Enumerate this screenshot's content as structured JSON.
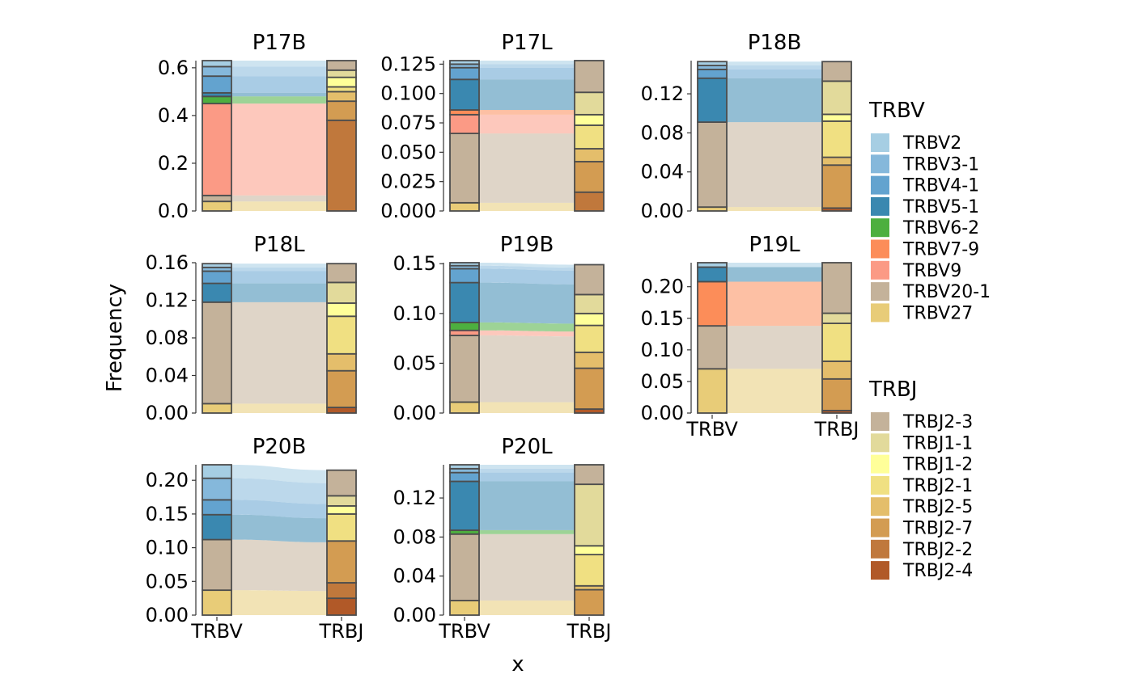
{
  "colors": {
    "TRBV2": "#A6CEE3",
    "TRBV3-1": "#85B8DB",
    "TRBV4-1": "#63A3CF",
    "TRBV5-1": "#3A88B0",
    "TRBV6-2": "#4DAF3F",
    "TRBV7-9": "#FC8D59",
    "TRBV9": "#FB9A85",
    "TRBV20-1": "#C4B29A",
    "TRBV27": "#E8CC78",
    "TRBJ2-3": "#C4B29A",
    "TRBJ1-1": "#E2DA9B",
    "TRBJ1-2": "#FFFF99",
    "TRBJ2-1": "#F0E082",
    "TRBJ2-5": "#E4BE6B",
    "TRBJ2-7": "#D39C52",
    "TRBJ2-2": "#C0783C",
    "TRBJ2-4": "#B15928"
  },
  "chart_data": {
    "type": "alluvial",
    "xlabel": "x",
    "ylabel": "Frequency",
    "x_categories": [
      "TRBV",
      "TRBJ"
    ],
    "facets": [
      {
        "name": "P17B",
        "ylim": [
          0,
          0.63
        ],
        "yticks": [
          0.0,
          0.2,
          0.4,
          0.6
        ],
        "tick_labels": [
          "0.0",
          "0.2",
          "0.4",
          "0.6"
        ],
        "TRBV": [
          {
            "gene": "TRBV27",
            "value": 0.04
          },
          {
            "gene": "TRBV20-1",
            "value": 0.025
          },
          {
            "gene": "TRBV9",
            "value": 0.385
          },
          {
            "gene": "TRBV6-2",
            "value": 0.03
          },
          {
            "gene": "TRBV5-1",
            "value": 0.015
          },
          {
            "gene": "TRBV4-1",
            "value": 0.07
          },
          {
            "gene": "TRBV3-1",
            "value": 0.04
          },
          {
            "gene": "TRBV2",
            "value": 0.025
          }
        ],
        "TRBJ": [
          {
            "gene": "TRBJ2-2",
            "value": 0.38
          },
          {
            "gene": "TRBJ2-7",
            "value": 0.08
          },
          {
            "gene": "TRBJ2-5",
            "value": 0.04
          },
          {
            "gene": "TRBJ2-1",
            "value": 0.02
          },
          {
            "gene": "TRBJ1-2",
            "value": 0.04
          },
          {
            "gene": "TRBJ1-1",
            "value": 0.03
          },
          {
            "gene": "TRBJ2-3",
            "value": 0.04
          }
        ]
      },
      {
        "name": "P17L",
        "ylim": [
          0,
          0.128
        ],
        "yticks": [
          0.0,
          0.025,
          0.05,
          0.075,
          0.1,
          0.125
        ],
        "tick_labels": [
          "0.000",
          "0.025",
          "0.050",
          "0.075",
          "0.100",
          "0.125"
        ],
        "TRBV": [
          {
            "gene": "TRBV27",
            "value": 0.007
          },
          {
            "gene": "TRBV20-1",
            "value": 0.059
          },
          {
            "gene": "TRBV9",
            "value": 0.016
          },
          {
            "gene": "TRBV7-9",
            "value": 0.004
          },
          {
            "gene": "TRBV5-1",
            "value": 0.026
          },
          {
            "gene": "TRBV4-1",
            "value": 0.01
          },
          {
            "gene": "TRBV3-1",
            "value": 0.003
          },
          {
            "gene": "TRBV2",
            "value": 0.003
          }
        ],
        "TRBJ": [
          {
            "gene": "TRBJ2-2",
            "value": 0.016
          },
          {
            "gene": "TRBJ2-7",
            "value": 0.026
          },
          {
            "gene": "TRBJ2-5",
            "value": 0.011
          },
          {
            "gene": "TRBJ2-1",
            "value": 0.02
          },
          {
            "gene": "TRBJ1-2",
            "value": 0.009
          },
          {
            "gene": "TRBJ1-1",
            "value": 0.019
          },
          {
            "gene": "TRBJ2-3",
            "value": 0.027
          }
        ]
      },
      {
        "name": "P18B",
        "ylim": [
          0,
          0.154
        ],
        "yticks": [
          0.0,
          0.04,
          0.08,
          0.12
        ],
        "tick_labels": [
          "0.00",
          "0.04",
          "0.08",
          "0.12"
        ],
        "TRBV": [
          {
            "gene": "TRBV27",
            "value": 0.004
          },
          {
            "gene": "TRBV20-1",
            "value": 0.087
          },
          {
            "gene": "TRBV5-1",
            "value": 0.045
          },
          {
            "gene": "TRBV4-1",
            "value": 0.009
          },
          {
            "gene": "TRBV3-1",
            "value": 0.004
          },
          {
            "gene": "TRBV2",
            "value": 0.004
          }
        ],
        "TRBJ": [
          {
            "gene": "TRBJ2-4",
            "value": 0.003
          },
          {
            "gene": "TRBJ2-7",
            "value": 0.044
          },
          {
            "gene": "TRBJ2-5",
            "value": 0.008
          },
          {
            "gene": "TRBJ2-1",
            "value": 0.037
          },
          {
            "gene": "TRBJ1-2",
            "value": 0.007
          },
          {
            "gene": "TRBJ1-1",
            "value": 0.034
          },
          {
            "gene": "TRBJ2-3",
            "value": 0.02
          }
        ]
      },
      {
        "name": "P18L",
        "ylim": [
          0,
          0.16
        ],
        "yticks": [
          0.0,
          0.04,
          0.08,
          0.12,
          0.16
        ],
        "tick_labels": [
          "0.00",
          "0.04",
          "0.08",
          "0.12",
          "0.16"
        ],
        "TRBV": [
          {
            "gene": "TRBV27",
            "value": 0.01
          },
          {
            "gene": "TRBV20-1",
            "value": 0.108
          },
          {
            "gene": "TRBV5-1",
            "value": 0.02
          },
          {
            "gene": "TRBV4-1",
            "value": 0.013
          },
          {
            "gene": "TRBV3-1",
            "value": 0.004
          },
          {
            "gene": "TRBV2",
            "value": 0.004
          }
        ],
        "TRBJ": [
          {
            "gene": "TRBJ2-4",
            "value": 0.006
          },
          {
            "gene": "TRBJ2-7",
            "value": 0.039
          },
          {
            "gene": "TRBJ2-5",
            "value": 0.018
          },
          {
            "gene": "TRBJ2-1",
            "value": 0.04
          },
          {
            "gene": "TRBJ1-2",
            "value": 0.014
          },
          {
            "gene": "TRBJ1-1",
            "value": 0.022
          },
          {
            "gene": "TRBJ2-3",
            "value": 0.02
          }
        ]
      },
      {
        "name": "P19B",
        "ylim": [
          0,
          0.151
        ],
        "yticks": [
          0.0,
          0.05,
          0.1,
          0.15
        ],
        "tick_labels": [
          "0.00",
          "0.05",
          "0.10",
          "0.15"
        ],
        "TRBV": [
          {
            "gene": "TRBV27",
            "value": 0.011
          },
          {
            "gene": "TRBV20-1",
            "value": 0.067
          },
          {
            "gene": "TRBV9",
            "value": 0.005
          },
          {
            "gene": "TRBV6-2",
            "value": 0.008
          },
          {
            "gene": "TRBV5-1",
            "value": 0.04
          },
          {
            "gene": "TRBV4-1",
            "value": 0.014
          },
          {
            "gene": "TRBV3-1",
            "value": 0.003
          },
          {
            "gene": "TRBV2",
            "value": 0.003
          }
        ],
        "TRBJ": [
          {
            "gene": "TRBJ2-4",
            "value": 0.004
          },
          {
            "gene": "TRBJ2-7",
            "value": 0.041
          },
          {
            "gene": "TRBJ2-5",
            "value": 0.016
          },
          {
            "gene": "TRBJ2-1",
            "value": 0.027
          },
          {
            "gene": "TRBJ1-2",
            "value": 0.012
          },
          {
            "gene": "TRBJ1-1",
            "value": 0.019
          },
          {
            "gene": "TRBJ2-3",
            "value": 0.03
          }
        ]
      },
      {
        "name": "P19L",
        "ylim": [
          0,
          0.238
        ],
        "yticks": [
          0.0,
          0.05,
          0.1,
          0.15,
          0.2
        ],
        "tick_labels": [
          "0.00",
          "0.05",
          "0.10",
          "0.15",
          "0.20"
        ],
        "TRBV": [
          {
            "gene": "TRBV27",
            "value": 0.07
          },
          {
            "gene": "TRBV20-1",
            "value": 0.068
          },
          {
            "gene": "TRBV7-9",
            "value": 0.07
          },
          {
            "gene": "TRBV5-1",
            "value": 0.023
          },
          {
            "gene": "TRBV2",
            "value": 0.007
          }
        ],
        "TRBJ": [
          {
            "gene": "TRBJ2-4",
            "value": 0.004
          },
          {
            "gene": "TRBJ2-7",
            "value": 0.05
          },
          {
            "gene": "TRBJ2-5",
            "value": 0.028
          },
          {
            "gene": "TRBJ2-1",
            "value": 0.06
          },
          {
            "gene": "TRBJ1-1",
            "value": 0.016
          },
          {
            "gene": "TRBJ2-3",
            "value": 0.08
          }
        ]
      },
      {
        "name": "P20B",
        "ylim": [
          0,
          0.223
        ],
        "yticks": [
          0.0,
          0.05,
          0.1,
          0.15,
          0.2
        ],
        "tick_labels": [
          "0.00",
          "0.05",
          "0.10",
          "0.15",
          "0.20"
        ],
        "TRBV": [
          {
            "gene": "TRBV27",
            "value": 0.037
          },
          {
            "gene": "TRBV20-1",
            "value": 0.075
          },
          {
            "gene": "TRBV5-1",
            "value": 0.037
          },
          {
            "gene": "TRBV4-1",
            "value": 0.022
          },
          {
            "gene": "TRBV3-1",
            "value": 0.032
          },
          {
            "gene": "TRBV2",
            "value": 0.02
          }
        ],
        "TRBJ": [
          {
            "gene": "TRBJ2-4",
            "value": 0.025
          },
          {
            "gene": "TRBJ2-2",
            "value": 0.023
          },
          {
            "gene": "TRBJ2-7",
            "value": 0.062
          },
          {
            "gene": "TRBJ2-1",
            "value": 0.04
          },
          {
            "gene": "TRBJ1-2",
            "value": 0.012
          },
          {
            "gene": "TRBJ1-1",
            "value": 0.015
          },
          {
            "gene": "TRBJ2-3",
            "value": 0.038
          }
        ]
      },
      {
        "name": "P20L",
        "ylim": [
          0,
          0.154
        ],
        "yticks": [
          0.0,
          0.04,
          0.08,
          0.12
        ],
        "tick_labels": [
          "0.00",
          "0.04",
          "0.08",
          "0.12"
        ],
        "TRBV": [
          {
            "gene": "TRBV27",
            "value": 0.015
          },
          {
            "gene": "TRBV20-1",
            "value": 0.068
          },
          {
            "gene": "TRBV6-2",
            "value": 0.004
          },
          {
            "gene": "TRBV5-1",
            "value": 0.05
          },
          {
            "gene": "TRBV4-1",
            "value": 0.009
          },
          {
            "gene": "TRBV3-1",
            "value": 0.004
          },
          {
            "gene": "TRBV2",
            "value": 0.004
          }
        ],
        "TRBJ": [
          {
            "gene": "TRBJ2-7",
            "value": 0.026
          },
          {
            "gene": "TRBJ2-5",
            "value": 0.004
          },
          {
            "gene": "TRBJ2-1",
            "value": 0.032
          },
          {
            "gene": "TRBJ1-2",
            "value": 0.009
          },
          {
            "gene": "TRBJ1-1",
            "value": 0.063
          },
          {
            "gene": "TRBJ2-3",
            "value": 0.02
          }
        ]
      }
    ],
    "legends": [
      {
        "title": "TRBV",
        "items": [
          "TRBV2",
          "TRBV3-1",
          "TRBV4-1",
          "TRBV5-1",
          "TRBV6-2",
          "TRBV7-9",
          "TRBV9",
          "TRBV20-1",
          "TRBV27"
        ]
      },
      {
        "title": "TRBJ",
        "items": [
          "TRBJ2-3",
          "TRBJ1-1",
          "TRBJ1-2",
          "TRBJ2-1",
          "TRBJ2-5",
          "TRBJ2-7",
          "TRBJ2-2",
          "TRBJ2-4"
        ]
      }
    ],
    "legend_position": "right",
    "grid": false
  }
}
